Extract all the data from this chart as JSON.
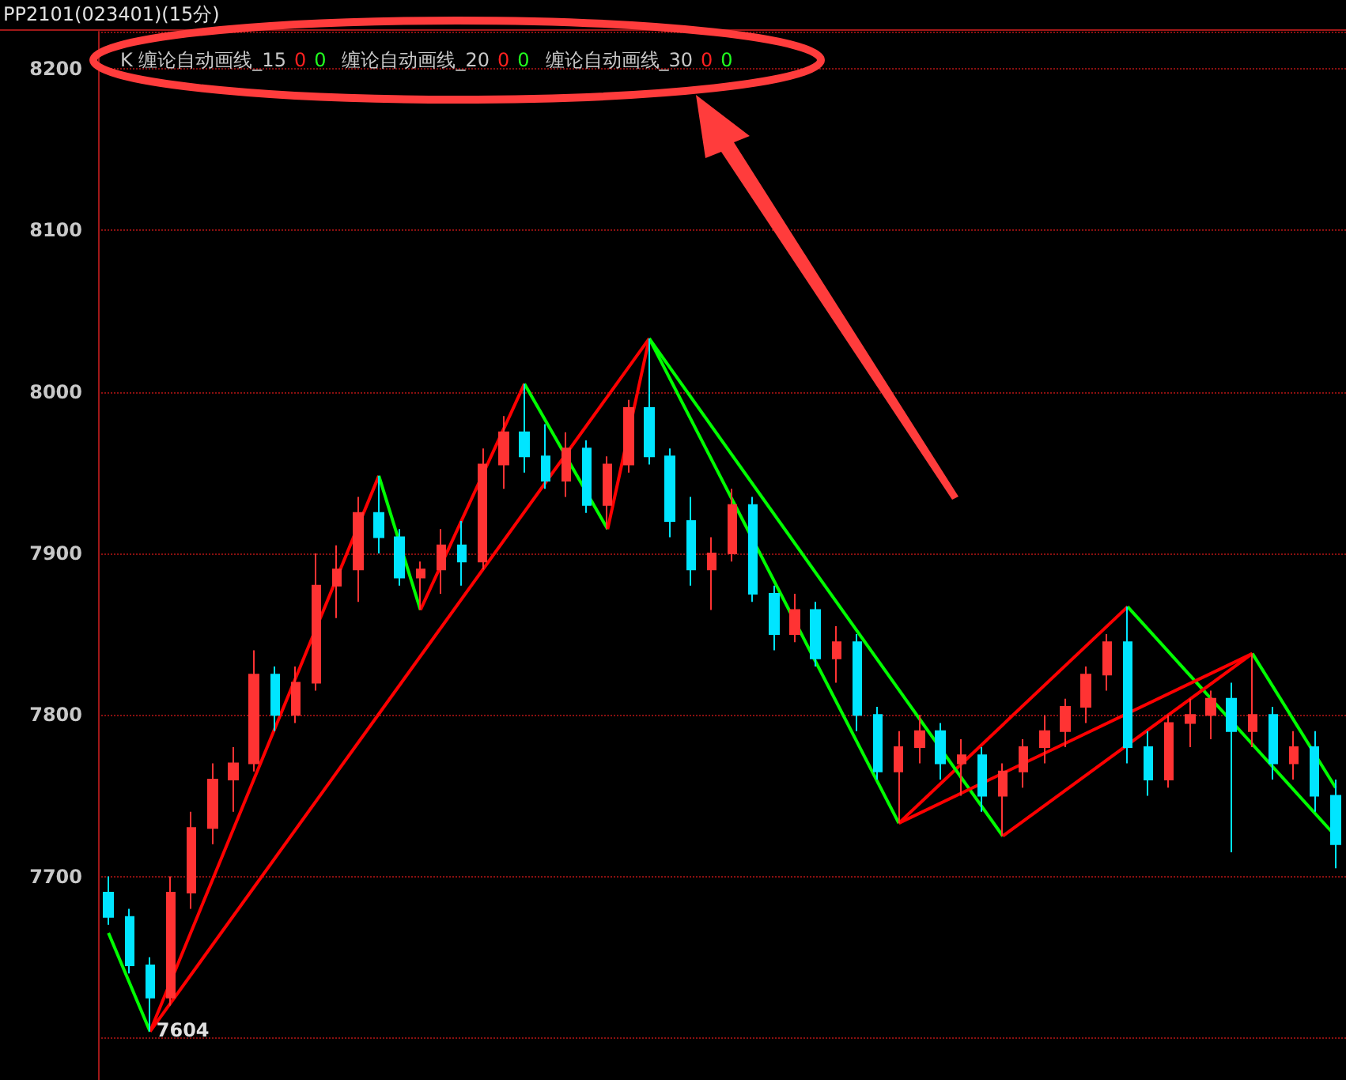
{
  "chart_data": {
    "type": "candlestick",
    "title": "PP2101(023401)(15分)",
    "annotations": [
      "K 缠论自动画线_15",
      "0",
      "0",
      "缠论自动画线_20",
      "0",
      "0",
      "缠论自动画线_30",
      "0",
      "0",
      "7604"
    ],
    "categories": [
      null,
      null,
      null,
      null,
      null,
      null,
      null,
      null,
      null,
      null,
      null,
      null,
      null,
      null,
      null,
      null,
      null,
      null,
      null,
      null,
      null,
      null,
      null,
      null,
      null,
      null,
      null,
      null,
      null,
      null,
      null,
      null,
      null,
      null,
      null,
      null,
      null,
      null,
      null,
      null,
      null,
      null,
      null,
      null,
      null,
      null,
      null,
      null,
      null,
      null,
      null,
      null,
      null,
      null,
      null,
      null,
      null,
      null,
      null,
      null
    ],
    "ohlc": [
      [
        7690,
        7700,
        7670,
        7675
      ],
      [
        7675,
        7680,
        7640,
        7645
      ],
      [
        7645,
        7650,
        7604,
        7625
      ],
      [
        7625,
        7700,
        7620,
        7690
      ],
      [
        7690,
        7740,
        7680,
        7730
      ],
      [
        7730,
        7770,
        7720,
        7760
      ],
      [
        7760,
        7780,
        7740,
        7770
      ],
      [
        7770,
        7840,
        7765,
        7825
      ],
      [
        7825,
        7830,
        7790,
        7800
      ],
      [
        7800,
        7830,
        7795,
        7820
      ],
      [
        7820,
        7900,
        7815,
        7880
      ],
      [
        7880,
        7905,
        7860,
        7890
      ],
      [
        7890,
        7935,
        7870,
        7925
      ],
      [
        7925,
        7948,
        7900,
        7910
      ],
      [
        7910,
        7915,
        7880,
        7885
      ],
      [
        7885,
        7895,
        7865,
        7890
      ],
      [
        7890,
        7915,
        7875,
        7905
      ],
      [
        7905,
        7920,
        7880,
        7895
      ],
      [
        7895,
        7965,
        7890,
        7955
      ],
      [
        7955,
        7985,
        7940,
        7975
      ],
      [
        7975,
        8005,
        7950,
        7960
      ],
      [
        7960,
        7980,
        7940,
        7945
      ],
      [
        7945,
        7975,
        7935,
        7965
      ],
      [
        7965,
        7970,
        7925,
        7930
      ],
      [
        7930,
        7960,
        7915,
        7955
      ],
      [
        7955,
        7995,
        7950,
        7990
      ],
      [
        7990,
        8033,
        7955,
        7960
      ],
      [
        7960,
        7965,
        7910,
        7920
      ],
      [
        7920,
        7935,
        7880,
        7890
      ],
      [
        7890,
        7910,
        7865,
        7900
      ],
      [
        7900,
        7940,
        7895,
        7930
      ],
      [
        7930,
        7935,
        7870,
        7875
      ],
      [
        7875,
        7880,
        7840,
        7850
      ],
      [
        7850,
        7875,
        7845,
        7865
      ],
      [
        7865,
        7870,
        7830,
        7835
      ],
      [
        7835,
        7855,
        7820,
        7845
      ],
      [
        7845,
        7850,
        7790,
        7800
      ],
      [
        7800,
        7805,
        7760,
        7765
      ],
      [
        7765,
        7790,
        7733,
        7780
      ],
      [
        7780,
        7800,
        7770,
        7790
      ],
      [
        7790,
        7795,
        7760,
        7770
      ],
      [
        7770,
        7785,
        7750,
        7775
      ],
      [
        7775,
        7780,
        7740,
        7750
      ],
      [
        7750,
        7770,
        7725,
        7765
      ],
      [
        7765,
        7785,
        7755,
        7780
      ],
      [
        7780,
        7800,
        7770,
        7790
      ],
      [
        7790,
        7810,
        7780,
        7805
      ],
      [
        7805,
        7830,
        7795,
        7825
      ],
      [
        7825,
        7850,
        7815,
        7845
      ],
      [
        7845,
        7867,
        7770,
        7780
      ],
      [
        7780,
        7790,
        7750,
        7760
      ],
      [
        7760,
        7800,
        7755,
        7795
      ],
      [
        7795,
        7810,
        7780,
        7800
      ],
      [
        7800,
        7815,
        7785,
        7810
      ],
      [
        7810,
        7820,
        7715,
        7790
      ],
      [
        7790,
        7838,
        7780,
        7800
      ],
      [
        7800,
        7805,
        7760,
        7770
      ],
      [
        7770,
        7790,
        7760,
        7780
      ],
      [
        7780,
        7790,
        7740,
        7750
      ],
      [
        7750,
        7760,
        7705,
        7720
      ]
    ],
    "colors": [
      "#00e5ff",
      "#00e5ff",
      "#00e5ff",
      "#ff3333",
      "#ff3333",
      "#ff3333",
      "#ff3333",
      "#ff3333",
      "#00e5ff",
      "#ff3333",
      "#ff3333",
      "#ff3333",
      "#ff3333",
      "#00e5ff",
      "#00e5ff",
      "#ff3333",
      "#ff3333",
      "#00e5ff",
      "#ff3333",
      "#ff3333",
      "#00e5ff",
      "#00e5ff",
      "#ff3333",
      "#00e5ff",
      "#ff3333",
      "#ff3333",
      "#00e5ff",
      "#00e5ff",
      "#00e5ff",
      "#ff3333",
      "#ff3333",
      "#00e5ff",
      "#00e5ff",
      "#ff3333",
      "#00e5ff",
      "#ff3333",
      "#00e5ff",
      "#00e5ff",
      "#ff3333",
      "#ff3333",
      "#00e5ff",
      "#ff3333",
      "#00e5ff",
      "#ff3333",
      "#ff3333",
      "#ff3333",
      "#ff3333",
      "#ff3333",
      "#ff3333",
      "#00e5ff",
      "#00e5ff",
      "#ff3333",
      "#ff3333",
      "#ff3333",
      "#00e5ff",
      "#ff3333",
      "#00e5ff",
      "#ff3333",
      "#00e5ff",
      "#00e5ff"
    ],
    "series": [
      {
        "type": "line",
        "color": "#00ff00",
        "values": [
          7665,
          null,
          7604,
          null,
          null,
          null,
          null,
          null,
          null,
          null,
          null,
          null,
          null,
          null,
          null,
          null,
          null,
          null,
          null,
          null,
          null,
          null,
          null,
          null,
          null,
          null,
          null,
          null,
          null,
          null,
          null,
          null,
          null,
          null,
          null,
          null,
          null,
          null,
          null,
          null,
          null,
          null,
          null,
          null,
          null,
          null,
          null,
          null,
          null,
          null,
          null,
          null,
          null,
          null,
          null,
          null,
          null,
          null,
          null,
          null
        ]
      },
      {
        "type": "line",
        "color": "#ff0000",
        "values": [
          null,
          null,
          7604,
          null,
          null,
          null,
          null,
          null,
          null,
          null,
          null,
          null,
          null,
          7948,
          null,
          null,
          null,
          null,
          null,
          null,
          null,
          null,
          null,
          null,
          null,
          null,
          null,
          null,
          null,
          null,
          null,
          null,
          null,
          null,
          null,
          null,
          null,
          null,
          null,
          null,
          null,
          null,
          null,
          null,
          null,
          null,
          null,
          null,
          null,
          null,
          null,
          null,
          null,
          null,
          null,
          null,
          null,
          null,
          null,
          null
        ]
      },
      {
        "type": "line",
        "color": "#00ff00",
        "values": [
          null,
          null,
          null,
          null,
          null,
          null,
          null,
          null,
          null,
          null,
          null,
          null,
          null,
          7948,
          null,
          7865,
          null,
          null,
          null,
          null,
          null,
          null,
          null,
          null,
          null,
          null,
          null,
          null,
          null,
          null,
          null,
          null,
          null,
          null,
          null,
          null,
          null,
          null,
          null,
          null,
          null,
          null,
          null,
          null,
          null,
          null,
          null,
          null,
          null,
          null,
          null,
          null,
          null,
          null,
          null,
          null,
          null,
          null,
          null,
          null
        ]
      },
      {
        "type": "line",
        "color": "#ff0000",
        "values": [
          null,
          null,
          null,
          null,
          null,
          null,
          null,
          null,
          null,
          null,
          null,
          null,
          null,
          null,
          null,
          7865,
          null,
          null,
          null,
          null,
          8005,
          null,
          null,
          null,
          null,
          null,
          null,
          null,
          null,
          null,
          null,
          null,
          null,
          null,
          null,
          null,
          null,
          null,
          null,
          null,
          null,
          null,
          null,
          null,
          null,
          null,
          null,
          null,
          null,
          null,
          null,
          null,
          null,
          null,
          null,
          null,
          null,
          null,
          null,
          null
        ]
      },
      {
        "type": "line",
        "color": "#00ff00",
        "values": [
          null,
          null,
          null,
          null,
          null,
          null,
          null,
          null,
          null,
          null,
          null,
          null,
          null,
          null,
          null,
          null,
          null,
          null,
          null,
          null,
          8005,
          null,
          null,
          null,
          7915,
          null,
          null,
          null,
          null,
          null,
          null,
          null,
          null,
          null,
          null,
          null,
          null,
          null,
          null,
          null,
          null,
          null,
          null,
          null,
          null,
          null,
          null,
          null,
          null,
          null,
          null,
          null,
          null,
          null,
          null,
          null,
          null,
          null,
          null,
          null
        ]
      },
      {
        "type": "line",
        "color": "#ff0000",
        "values": [
          null,
          null,
          null,
          null,
          null,
          null,
          null,
          null,
          null,
          null,
          null,
          null,
          null,
          null,
          null,
          null,
          null,
          null,
          null,
          null,
          null,
          null,
          null,
          null,
          7915,
          null,
          8033,
          null,
          null,
          null,
          null,
          null,
          null,
          null,
          null,
          null,
          null,
          null,
          null,
          null,
          null,
          null,
          null,
          null,
          null,
          null,
          null,
          null,
          null,
          null,
          null,
          null,
          null,
          null,
          null,
          null,
          null,
          null,
          null,
          null
        ]
      },
      {
        "type": "line",
        "color": "#00ff00",
        "values": [
          null,
          null,
          null,
          null,
          null,
          null,
          null,
          null,
          null,
          null,
          null,
          null,
          null,
          null,
          null,
          null,
          null,
          null,
          null,
          null,
          null,
          null,
          null,
          null,
          null,
          null,
          8033,
          null,
          null,
          null,
          null,
          null,
          null,
          null,
          null,
          null,
          null,
          null,
          7733,
          null,
          null,
          null,
          null,
          null,
          null,
          null,
          null,
          null,
          null,
          null,
          null,
          null,
          null,
          null,
          null,
          null,
          null,
          null,
          null,
          null
        ]
      },
      {
        "type": "line",
        "color": "#ff0000",
        "values": [
          null,
          null,
          null,
          null,
          null,
          null,
          null,
          null,
          null,
          null,
          null,
          null,
          null,
          null,
          null,
          null,
          null,
          null,
          null,
          null,
          null,
          null,
          null,
          null,
          null,
          null,
          null,
          null,
          null,
          null,
          null,
          null,
          null,
          null,
          null,
          null,
          null,
          null,
          7733,
          null,
          null,
          null,
          null,
          null,
          null,
          null,
          null,
          null,
          null,
          7867,
          null,
          null,
          null,
          null,
          null,
          null,
          null,
          null,
          null,
          null
        ]
      },
      {
        "type": "line",
        "color": "#00ff00",
        "values": [
          null,
          null,
          null,
          null,
          null,
          null,
          null,
          null,
          null,
          null,
          null,
          null,
          null,
          null,
          null,
          null,
          null,
          null,
          null,
          null,
          null,
          null,
          null,
          null,
          null,
          null,
          null,
          null,
          null,
          null,
          null,
          null,
          null,
          null,
          null,
          null,
          null,
          null,
          null,
          null,
          null,
          null,
          null,
          null,
          null,
          null,
          null,
          null,
          null,
          7867,
          null,
          null,
          null,
          null,
          null,
          null,
          null,
          null,
          null,
          7725
        ]
      },
      {
        "type": "line",
        "color": "#ff0000",
        "values": [
          null,
          null,
          7604,
          null,
          null,
          null,
          null,
          null,
          null,
          null,
          null,
          null,
          null,
          null,
          null,
          null,
          null,
          null,
          null,
          null,
          null,
          null,
          null,
          null,
          null,
          null,
          8033,
          null,
          null,
          null,
          null,
          null,
          null,
          null,
          null,
          null,
          null,
          null,
          null,
          null,
          null,
          null,
          null,
          null,
          null,
          null,
          null,
          null,
          null,
          null,
          null,
          null,
          null,
          null,
          null,
          null,
          null,
          null,
          null,
          null
        ]
      },
      {
        "type": "line",
        "color": "#00ff00",
        "values": [
          null,
          null,
          null,
          null,
          null,
          null,
          null,
          null,
          null,
          null,
          null,
          null,
          null,
          null,
          null,
          null,
          null,
          null,
          null,
          null,
          null,
          null,
          null,
          null,
          null,
          null,
          8033,
          null,
          null,
          null,
          null,
          null,
          null,
          null,
          null,
          null,
          null,
          null,
          null,
          null,
          null,
          null,
          null,
          7725,
          null,
          null,
          null,
          null,
          null,
          null,
          null,
          null,
          null,
          null,
          null,
          null,
          null,
          null,
          null,
          null
        ]
      },
      {
        "type": "line",
        "color": "#ff0000",
        "values": [
          null,
          null,
          null,
          null,
          null,
          null,
          null,
          null,
          null,
          null,
          null,
          null,
          null,
          null,
          null,
          null,
          null,
          null,
          null,
          null,
          null,
          null,
          null,
          null,
          null,
          null,
          null,
          null,
          null,
          null,
          null,
          null,
          null,
          null,
          null,
          null,
          null,
          null,
          null,
          null,
          null,
          null,
          null,
          7725,
          null,
          null,
          null,
          null,
          null,
          null,
          null,
          null,
          null,
          null,
          null,
          7838,
          null,
          null,
          null,
          null
        ]
      },
      {
        "type": "line",
        "color": "#00ff00",
        "values": [
          null,
          null,
          null,
          null,
          null,
          null,
          null,
          null,
          null,
          null,
          null,
          null,
          null,
          null,
          null,
          null,
          null,
          null,
          null,
          null,
          null,
          null,
          null,
          null,
          null,
          null,
          null,
          null,
          null,
          null,
          null,
          null,
          null,
          null,
          null,
          null,
          null,
          null,
          null,
          null,
          null,
          null,
          null,
          null,
          null,
          null,
          null,
          null,
          null,
          null,
          null,
          null,
          null,
          null,
          null,
          7838,
          null,
          null,
          null,
          7755
        ]
      },
      {
        "type": "line",
        "color": "#ff0000",
        "values": [
          null,
          null,
          null,
          null,
          null,
          null,
          null,
          null,
          null,
          null,
          null,
          null,
          null,
          null,
          null,
          null,
          null,
          null,
          null,
          null,
          null,
          null,
          null,
          null,
          null,
          null,
          null,
          null,
          null,
          null,
          null,
          null,
          null,
          null,
          null,
          null,
          null,
          null,
          7733,
          null,
          null,
          null,
          null,
          null,
          null,
          null,
          null,
          null,
          null,
          null,
          null,
          null,
          null,
          null,
          null,
          7838,
          null,
          null,
          null,
          null
        ]
      }
    ],
    "ylim": [
      7574,
      8223
    ],
    "yticks": [
      7700,
      7800,
      7900,
      8000,
      8100,
      8200
    ],
    "grid": "y",
    "tick_labels": "y"
  }
}
